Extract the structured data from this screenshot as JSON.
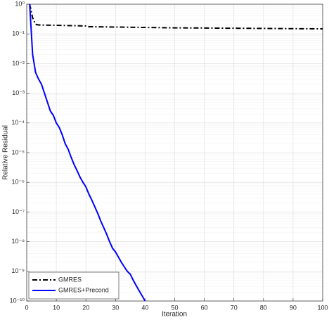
{
  "chart_data": {
    "type": "line",
    "xlabel": "Iteration",
    "ylabel": "Relative Residual",
    "log_y": true,
    "grid": true,
    "minor_grid": true,
    "legend": "lower left",
    "xlim": [
      0,
      100
    ],
    "xticks": [
      0,
      10,
      20,
      30,
      40,
      50,
      60,
      70,
      80,
      90,
      100
    ],
    "ylim": [
      1e-10,
      1
    ],
    "yticks": [
      {
        "value": 1e-10,
        "label": "10⁻¹⁰"
      },
      {
        "value": 1e-09,
        "label": "10⁻⁹"
      },
      {
        "value": 1e-08,
        "label": "10⁻⁸"
      },
      {
        "value": 1e-07,
        "label": "10⁻⁷"
      },
      {
        "value": 1e-06,
        "label": "10⁻⁶"
      },
      {
        "value": 1e-05,
        "label": "10⁻⁵"
      },
      {
        "value": 0.0001,
        "label": "10⁻⁴"
      },
      {
        "value": 0.001,
        "label": "10⁻³"
      },
      {
        "value": 0.01,
        "label": "10⁻²"
      },
      {
        "value": 0.1,
        "label": "10⁻¹"
      },
      {
        "value": 1,
        "label": "10⁰"
      }
    ],
    "series": [
      {
        "name": "GMRES",
        "color": "#000000",
        "linestyle": "dashdot",
        "x": [
          1,
          2,
          3,
          4,
          10,
          20,
          21,
          30,
          40,
          50,
          60,
          70,
          80,
          90,
          100
        ],
        "values": [
          1,
          0.35,
          0.21,
          0.2,
          0.195,
          0.185,
          0.175,
          0.17,
          0.165,
          0.16,
          0.158,
          0.155,
          0.153,
          0.15,
          0.148
        ]
      },
      {
        "name": "GMRES+Precond",
        "color": "#0000ff",
        "linestyle": "solid",
        "x": [
          1,
          2,
          3,
          4,
          5,
          6,
          7,
          8,
          9,
          10,
          11,
          12,
          13,
          14,
          15,
          16,
          17,
          18,
          19,
          20,
          21,
          22,
          23,
          24,
          25,
          26,
          27,
          28,
          29,
          30,
          31,
          32,
          33,
          34,
          35,
          36,
          37,
          38,
          39,
          40
        ],
        "values": [
          1,
          0.02,
          0.005,
          0.003,
          0.002,
          0.001,
          0.0005,
          0.00025,
          0.00018,
          0.0001,
          7e-05,
          4e-05,
          2e-05,
          1.3e-05,
          7e-06,
          4e-06,
          2.5e-06,
          1.5e-06,
          1e-06,
          7e-07,
          4e-07,
          2.5e-07,
          1.5e-07,
          9e-08,
          5e-08,
          3e-08,
          1.8e-08,
          1e-08,
          6e-09,
          4.5e-09,
          3e-09,
          2e-09,
          1.4e-09,
          1e-09,
          8e-10,
          5e-10,
          3.3e-10,
          2.2e-10,
          1.5e-10,
          1e-10
        ]
      }
    ]
  }
}
